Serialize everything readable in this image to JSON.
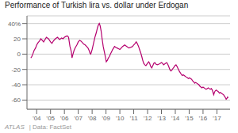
{
  "chart_data": {
    "type": "line",
    "title": "Performance of Turkish lira vs. dollar under Erdogan",
    "annotations": [
      "ATLAS",
      "| Data: FactSet"
    ],
    "color": "#b5006e",
    "grid": true,
    "xlim": [
      2003.3,
      2017.95
    ],
    "xticks": [
      {
        "value": 2004,
        "label": "’04"
      },
      {
        "value": 2005,
        "label": "’05"
      },
      {
        "value": 2006,
        "label": "’06"
      },
      {
        "value": 2007,
        "label": "’07"
      },
      {
        "value": 2008,
        "label": "’08"
      },
      {
        "value": 2009,
        "label": "’09"
      },
      {
        "value": 2010,
        "label": "’10"
      },
      {
        "value": 2011,
        "label": "’11"
      },
      {
        "value": 2012,
        "label": "’12"
      },
      {
        "value": 2013,
        "label": "’13"
      },
      {
        "value": 2014,
        "label": "’14"
      },
      {
        "value": 2015,
        "label": "’15"
      },
      {
        "value": 2016,
        "label": "’16"
      },
      {
        "value": 2017,
        "label": "’17"
      }
    ],
    "ylim": [
      -72,
      50
    ],
    "yticks": [
      {
        "value": 40,
        "label": "40%"
      },
      20,
      0,
      -20,
      -40,
      -60
    ],
    "x": [
      2003.58,
      2003.65,
      2003.72,
      2003.82,
      2003.92,
      2004.0,
      2004.1,
      2004.2,
      2004.3,
      2004.4,
      2004.5,
      2004.6,
      2004.7,
      2004.85,
      2005.0,
      2005.1,
      2005.2,
      2005.35,
      2005.5,
      2005.65,
      2005.8,
      2005.9,
      2006.0,
      2006.1,
      2006.2,
      2006.3,
      2006.4,
      2006.5,
      2006.55,
      2006.62,
      2006.7,
      2006.8,
      2006.9,
      2007.0,
      2007.1,
      2007.2,
      2007.3,
      2007.4,
      2007.5,
      2007.6,
      2007.7,
      2007.8,
      2007.85,
      2007.9,
      2007.95,
      2008.0,
      2008.1,
      2008.2,
      2008.3,
      2008.38,
      2008.45,
      2008.52,
      2008.58,
      2008.65,
      2008.72,
      2008.8,
      2008.88,
      2008.95,
      2009.02,
      2009.1,
      2009.17,
      2009.25,
      2009.32,
      2009.4,
      2009.48,
      2009.55,
      2009.62,
      2009.7,
      2009.8,
      2009.9,
      2010.0,
      2010.1,
      2010.2,
      2010.35,
      2010.5,
      2010.65,
      2010.8,
      2010.92,
      2011.0,
      2011.1,
      2011.18,
      2011.25,
      2011.35,
      2011.42,
      2011.5,
      2011.58,
      2011.65,
      2011.72,
      2011.8,
      2011.88,
      2012.0,
      2012.08,
      2012.15,
      2012.22,
      2012.3,
      2012.38,
      2012.45,
      2012.52,
      2012.6,
      2012.7,
      2012.82,
      2012.92,
      2013.0,
      2013.08,
      2013.15,
      2013.22,
      2013.3,
      2013.38,
      2013.45,
      2013.52,
      2013.6,
      2013.68,
      2013.75,
      2013.82,
      2013.9,
      2013.97,
      2014.05,
      2014.12,
      2014.2,
      2014.28,
      2014.35,
      2014.42,
      2014.5,
      2014.58,
      2014.65,
      2014.72,
      2014.8,
      2014.88,
      2014.95,
      2015.02,
      2015.1,
      2015.18,
      2015.25,
      2015.32,
      2015.4,
      2015.47,
      2015.55,
      2015.62,
      2015.7,
      2015.78,
      2015.85,
      2015.92,
      2016.0,
      2016.08,
      2016.15,
      2016.22,
      2016.3,
      2016.38,
      2016.45,
      2016.52,
      2016.6,
      2016.67,
      2016.72,
      2016.77,
      2016.82,
      2016.88,
      2016.95,
      2017.02,
      2017.1,
      2017.18,
      2017.25,
      2017.32,
      2017.4,
      2017.48,
      2017.55,
      2017.62,
      2017.67,
      2017.72,
      2017.77,
      2017.82
    ],
    "values": [
      -5,
      -3,
      0,
      5,
      8,
      12,
      15,
      17,
      20,
      18,
      16,
      19,
      22,
      20,
      16,
      14,
      17,
      20,
      22,
      19,
      21,
      20,
      22,
      23,
      24,
      22,
      10,
      3,
      -5,
      0,
      5,
      9,
      12,
      16,
      18,
      17,
      15,
      13,
      12,
      10,
      8,
      4,
      1,
      0,
      3,
      6,
      14,
      22,
      28,
      34,
      38,
      40,
      37,
      30,
      20,
      10,
      3,
      -3,
      -10,
      -8,
      -5,
      -3,
      0,
      3,
      6,
      8,
      10,
      9,
      8,
      7,
      6,
      8,
      10,
      12,
      10,
      8,
      9,
      10,
      12,
      14,
      16,
      14,
      10,
      6,
      2,
      -3,
      -8,
      -12,
      -14,
      -15,
      -12,
      -10,
      -12,
      -16,
      -18,
      -15,
      -12,
      -11,
      -13,
      -14,
      -13,
      -12,
      -11,
      -12,
      -14,
      -13,
      -12,
      -11,
      -13,
      -16,
      -20,
      -22,
      -21,
      -19,
      -17,
      -15,
      -14,
      -16,
      -19,
      -22,
      -24,
      -26,
      -28,
      -27,
      -28,
      -29,
      -30,
      -31,
      -32,
      -31,
      -32,
      -33,
      -35,
      -36,
      -38,
      -37,
      -38,
      -39,
      -40,
      -42,
      -43,
      -44,
      -43,
      -44,
      -45,
      -46,
      -45,
      -44,
      -45,
      -46,
      -45,
      -47,
      -50,
      -53,
      -50,
      -48,
      -47,
      -48,
      -49,
      -51,
      -50,
      -51,
      -52,
      -53,
      -55,
      -57,
      -59,
      -58,
      -56,
      -57
    ]
  }
}
